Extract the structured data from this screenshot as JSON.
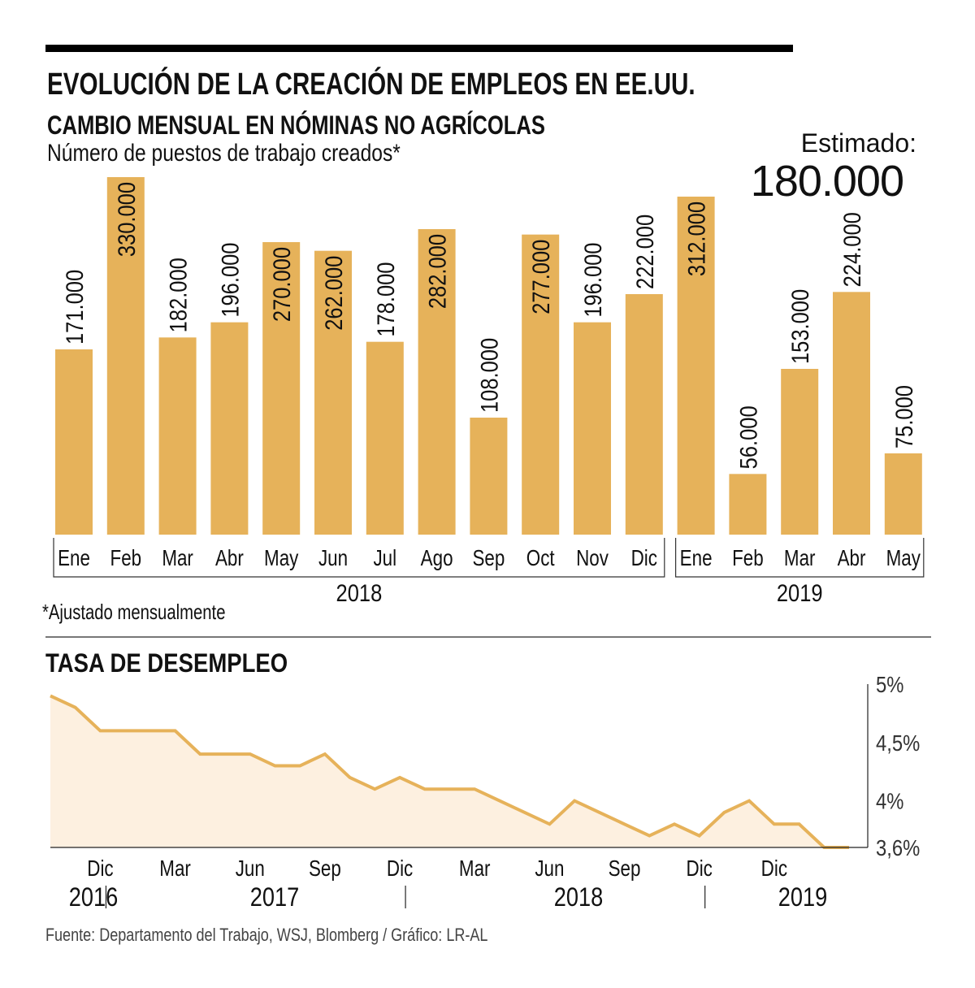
{
  "header": {
    "title": "EVOLUCIÓN DE LA CREACIÓN DE EMPLEOS EN EE.UU.",
    "subtitle": "CAMBIO MENSUAL EN NÓMINAS NO AGRÍCOLAS",
    "subtitle2": "Número de puestos de trabajo creados*",
    "estimate_label": "Estimado:",
    "estimate_value": "180.000"
  },
  "footnote": "*Ajustado mensualmente",
  "unemployment_title": "TASA DE DESEMPLEO",
  "source": "Fuente: Departamento del Trabajo, WSJ, Blomberg / Gráfico: LR-AL",
  "colors": {
    "bar": "#E6B25A",
    "line": "#E6B25A",
    "area": "#FDF0E0"
  },
  "chart_data": [
    {
      "type": "bar",
      "title": "CAMBIO MENSUAL EN NÓMINAS NO AGRÍCOLAS",
      "ylabel": "Número de puestos de trabajo creados*",
      "categories": [
        "Ene",
        "Feb",
        "Mar",
        "Abr",
        "May",
        "Jun",
        "Jul",
        "Ago",
        "Sep",
        "Oct",
        "Nov",
        "Dic",
        "Ene",
        "Feb",
        "Mar",
        "Abr",
        "May"
      ],
      "years": [
        {
          "label": "2018",
          "from": 0,
          "to": 11
        },
        {
          "label": "2019",
          "from": 12,
          "to": 16
        }
      ],
      "values": [
        171000,
        330000,
        182000,
        196000,
        270000,
        262000,
        178000,
        282000,
        108000,
        277000,
        196000,
        222000,
        312000,
        56000,
        153000,
        224000,
        75000
      ],
      "value_labels": [
        "171.000",
        "330.000",
        "182.000",
        "196.000",
        "270.000",
        "262.000",
        "178.000",
        "282.000",
        "108.000",
        "277.000",
        "196.000",
        "222.000",
        "312.000",
        "56.000",
        "153.000",
        "224.000",
        "75.000"
      ],
      "ylim": [
        0,
        330000
      ],
      "grid": false
    },
    {
      "type": "area",
      "title": "TASA DE DESEMPLEO",
      "y_ticks": [
        "5%",
        "4,5%",
        "4%",
        "3,6%"
      ],
      "y_tick_values": [
        5.0,
        4.5,
        4.0,
        3.6
      ],
      "ylim": [
        3.6,
        5.0
      ],
      "x_tick_labels": [
        "Dic",
        "Mar",
        "Jun",
        "Sep",
        "Dic",
        "Mar",
        "Jun",
        "Sep",
        "Dic",
        "Dic"
      ],
      "x_tick_index": [
        2,
        5,
        8,
        11,
        14,
        17,
        20,
        23,
        26,
        29
      ],
      "year_labels": [
        "2016",
        "2017",
        "2018",
        "2019"
      ],
      "year_separators_after_index": [
        2,
        14,
        26
      ],
      "values": [
        4.9,
        4.8,
        4.6,
        4.6,
        4.6,
        4.6,
        4.4,
        4.4,
        4.4,
        4.3,
        4.3,
        4.4,
        4.2,
        4.1,
        4.2,
        4.1,
        4.1,
        4.1,
        4.0,
        3.9,
        3.8,
        4.0,
        3.9,
        3.8,
        3.7,
        3.8,
        3.7,
        3.9,
        4.0,
        3.8,
        3.8,
        3.6,
        3.6
      ],
      "grid": false
    }
  ]
}
